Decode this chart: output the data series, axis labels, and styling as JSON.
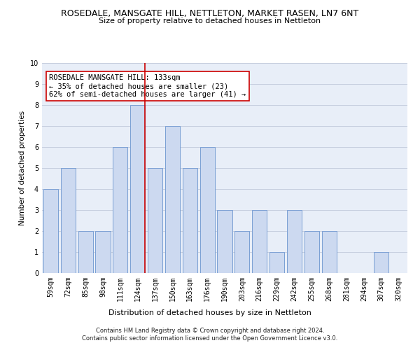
{
  "title": "ROSEDALE, MANSGATE HILL, NETTLETON, MARKET RASEN, LN7 6NT",
  "subtitle": "Size of property relative to detached houses in Nettleton",
  "xlabel_bottom": "Distribution of detached houses by size in Nettleton",
  "ylabel": "Number of detached properties",
  "categories": [
    "59sqm",
    "72sqm",
    "85sqm",
    "98sqm",
    "111sqm",
    "124sqm",
    "137sqm",
    "150sqm",
    "163sqm",
    "176sqm",
    "190sqm",
    "203sqm",
    "216sqm",
    "229sqm",
    "242sqm",
    "255sqm",
    "268sqm",
    "281sqm",
    "294sqm",
    "307sqm",
    "320sqm"
  ],
  "values": [
    4,
    5,
    2,
    2,
    6,
    8,
    5,
    7,
    5,
    6,
    3,
    2,
    3,
    1,
    3,
    2,
    2,
    0,
    0,
    1,
    0
  ],
  "bar_color": "#ccd9f0",
  "bar_edge_color": "#7a9fd4",
  "highlight_index": 5,
  "highlight_line_color": "#cc0000",
  "annotation_text": "ROSEDALE MANSGATE HILL: 133sqm\n← 35% of detached houses are smaller (23)\n62% of semi-detached houses are larger (41) →",
  "annotation_box_color": "#ffffff",
  "annotation_box_edge": "#cc0000",
  "ylim": [
    0,
    10
  ],
  "yticks": [
    0,
    1,
    2,
    3,
    4,
    5,
    6,
    7,
    8,
    9,
    10
  ],
  "footer": "Contains HM Land Registry data © Crown copyright and database right 2024.\nContains public sector information licensed under the Open Government Licence v3.0.",
  "bg_color": "#e8eef8",
  "grid_color": "#c0c8da",
  "title_fontsize": 9,
  "subtitle_fontsize": 8,
  "ylabel_fontsize": 7.5,
  "tick_fontsize": 7,
  "annot_fontsize": 7.5,
  "footer_fontsize": 6,
  "xlabel_bottom_fontsize": 8
}
